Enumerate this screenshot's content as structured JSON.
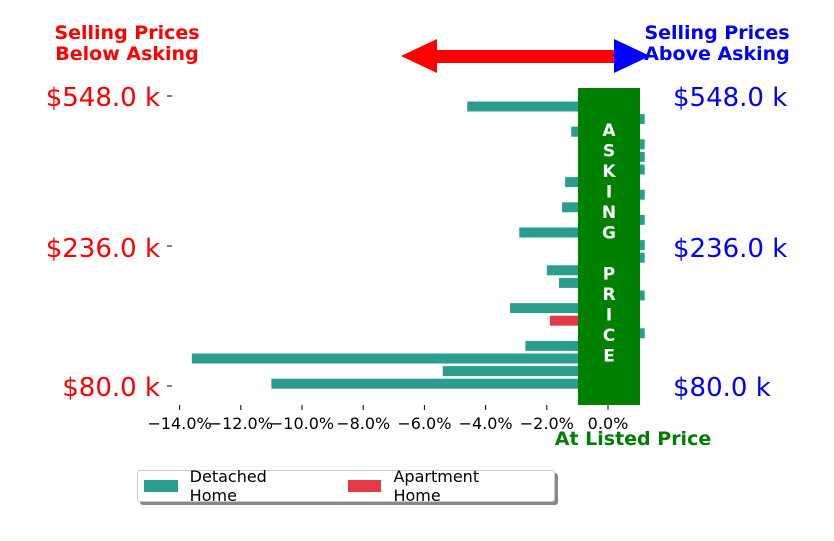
{
  "colors": {
    "below": "#ff0000",
    "above": "#0000ff",
    "asking_band": "#008000",
    "detached": "#2a9d8f",
    "apartment": "#e63946"
  },
  "headers": {
    "left_line1": "Selling Prices",
    "left_line2": "Below Asking",
    "right_line1": "Selling Prices",
    "right_line2": "Above Asking"
  },
  "asking_band_text": "ASKING PRICE",
  "at_listed_label": "At Listed Price",
  "price_labels": [
    "$548.0 k",
    "$236.0 k",
    "$80.0 k"
  ],
  "legend": {
    "detached": "Detached Home",
    "apartment": "Apartment Home"
  },
  "chart_data": {
    "type": "bar",
    "orientation": "horizontal",
    "xlim": [
      -14.5,
      1.2
    ],
    "x_ticks": [
      "−14.0%",
      "−12.0%",
      "−10.0%",
      "−8.0%",
      "−6.0%",
      "−4.0%",
      "−2.0%",
      "0.0%"
    ],
    "x_tick_values": [
      -14,
      -12,
      -10,
      -8,
      -6,
      -4,
      -2,
      0
    ],
    "y_tick_labels": [
      "$548.0 k",
      "$236.0 k",
      "$80.0 k"
    ],
    "bars": [
      {
        "row": 0,
        "value": -4.6,
        "series": "Detached Home"
      },
      {
        "row": 1,
        "value": 1.2,
        "series": "Detached Home"
      },
      {
        "row": 2,
        "value": -1.2,
        "series": "Detached Home"
      },
      {
        "row": 3,
        "value": 1.2,
        "series": "Detached Home"
      },
      {
        "row": 4,
        "value": 1.2,
        "series": "Detached Home"
      },
      {
        "row": 5,
        "value": 1.2,
        "series": "Detached Home"
      },
      {
        "row": 6,
        "value": -1.4,
        "series": "Detached Home"
      },
      {
        "row": 7,
        "value": 1.2,
        "series": "Detached Home"
      },
      {
        "row": 8,
        "value": -1.5,
        "series": "Detached Home"
      },
      {
        "row": 9,
        "value": 1.2,
        "series": "Detached Home"
      },
      {
        "row": 10,
        "value": -2.9,
        "series": "Detached Home"
      },
      {
        "row": 11,
        "value": 1.2,
        "series": "Detached Home"
      },
      {
        "row": 12,
        "value": 1.2,
        "series": "Detached Home"
      },
      {
        "row": 13,
        "value": -2.0,
        "series": "Detached Home"
      },
      {
        "row": 14,
        "value": -1.6,
        "series": "Detached Home"
      },
      {
        "row": 15,
        "value": 1.2,
        "series": "Detached Home"
      },
      {
        "row": 16,
        "value": -3.2,
        "series": "Detached Home"
      },
      {
        "row": 17,
        "value": -1.9,
        "series": "Apartment Home"
      },
      {
        "row": 18,
        "value": 1.2,
        "series": "Detached Home"
      },
      {
        "row": 19,
        "value": -2.7,
        "series": "Detached Home"
      },
      {
        "row": 20,
        "value": -13.6,
        "series": "Detached Home"
      },
      {
        "row": 21,
        "value": -5.4,
        "series": "Detached Home"
      },
      {
        "row": 22,
        "value": -11.0,
        "series": "Detached Home"
      }
    ]
  }
}
